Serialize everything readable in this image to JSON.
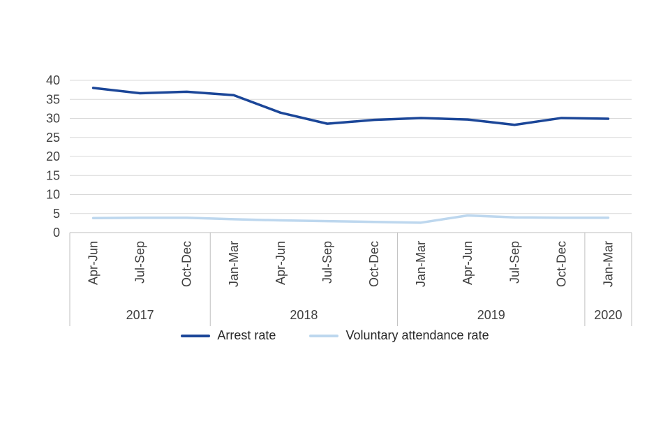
{
  "chart_data": {
    "type": "line",
    "title": "",
    "categories": [
      "Apr-Jun",
      "Jul-Sep",
      "Oct-Dec",
      "Jan-Mar",
      "Apr-Jun",
      "Jul-Sep",
      "Oct-Dec",
      "Jan-Mar",
      "Apr-Jun",
      "Jul-Sep",
      "Oct-Dec",
      "Jan-Mar"
    ],
    "year_groups": [
      {
        "label": "2017",
        "span": 3
      },
      {
        "label": "2018",
        "span": 4
      },
      {
        "label": "2019",
        "span": 4
      },
      {
        "label": "2020",
        "span": 1
      }
    ],
    "series": [
      {
        "name": "Arrest rate",
        "color": "#1B4698",
        "values": [
          38.0,
          36.6,
          37.0,
          36.1,
          31.5,
          28.6,
          29.6,
          30.1,
          29.7,
          28.3,
          30.1,
          29.9
        ]
      },
      {
        "name": "Voluntary attendance rate",
        "color": "#BDD7EE",
        "values": [
          3.8,
          3.9,
          3.9,
          3.5,
          3.2,
          3.0,
          2.8,
          2.6,
          4.5,
          4.0,
          3.9,
          3.9
        ]
      }
    ],
    "ylim": [
      0,
      40
    ],
    "ytick_step": 5,
    "y_tick_labels": [
      "0",
      "5",
      "10",
      "15",
      "20",
      "25",
      "30",
      "35",
      "40"
    ],
    "xlabel": "",
    "ylabel": "",
    "grid": true,
    "legend_position": "bottom",
    "colors": {
      "grid": "#D9D9D9",
      "axis": "#BFBFBF",
      "tick_text": "#404040",
      "legend_text": "#262626"
    }
  }
}
